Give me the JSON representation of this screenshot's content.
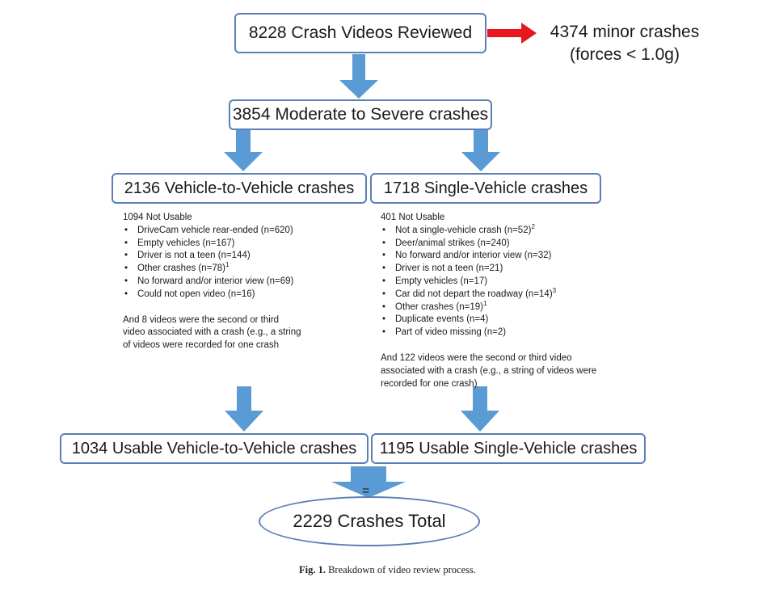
{
  "boxes": {
    "reviewed": "8228 Crash Videos Reviewed",
    "minor_line1": "4374 minor crashes",
    "minor_line2": "(forces < 1.0g)",
    "moderate": "3854 Moderate to Severe crashes",
    "v2v": "2136 Vehicle-to-Vehicle crashes",
    "single": "1718 Single-Vehicle crashes",
    "usable_v2v": "1034 Usable Vehicle-to-Vehicle crashes",
    "usable_single": "1195 Usable Single-Vehicle crashes",
    "equals": "=",
    "total": "2229 Crashes Total"
  },
  "v2v_notes": {
    "heading": "1094 Not Usable",
    "items": [
      {
        "text": "DriveCam vehicle rear-ended (n=620)",
        "sup": ""
      },
      {
        "text": "Empty vehicles (n=167)",
        "sup": ""
      },
      {
        "text": "Driver is  not a teen (n=144)",
        "sup": ""
      },
      {
        "text": "Other crashes (n=78)",
        "sup": "1"
      },
      {
        "text": "No forward and/or interior view (n=69)",
        "sup": ""
      },
      {
        "text": "Could not open video (n=16)",
        "sup": ""
      }
    ],
    "footer_lines": [
      "And 8 videos were the second or third",
      "video associated with a crash (e.g., a string",
      "of videos were recorded for one crash"
    ]
  },
  "single_notes": {
    "heading": "401 Not Usable",
    "items": [
      {
        "text": "Not a single-vehicle crash (n=52)",
        "sup": "2"
      },
      {
        "text": "Deer/animal strikes (n=240)",
        "sup": ""
      },
      {
        "text": "No forward and/or interior view (n=32)",
        "sup": ""
      },
      {
        "text": "Driver is not a teen (n=21)",
        "sup": ""
      },
      {
        "text": "Empty vehicles (n=17)",
        "sup": ""
      },
      {
        "text": "Car did not depart the roadway (n=14)",
        "sup": "3"
      },
      {
        "text": "Other crashes (n=19)",
        "sup": "1"
      },
      {
        "text": "Duplicate events (n=4)",
        "sup": ""
      },
      {
        "text": "Part of video missing (n=2)",
        "sup": ""
      }
    ],
    "footer_lines": [
      "And 122 videos were the second or third video",
      "associated with a crash (e.g., a string of videos were",
      "recorded for one crash)"
    ]
  },
  "caption": {
    "label": "Fig. 1.",
    "text": "Breakdown of video review process."
  },
  "colors": {
    "box_border": "#5b7fb6",
    "arrow_blue": "#5b9bd5",
    "arrow_red": "#e8171b"
  }
}
